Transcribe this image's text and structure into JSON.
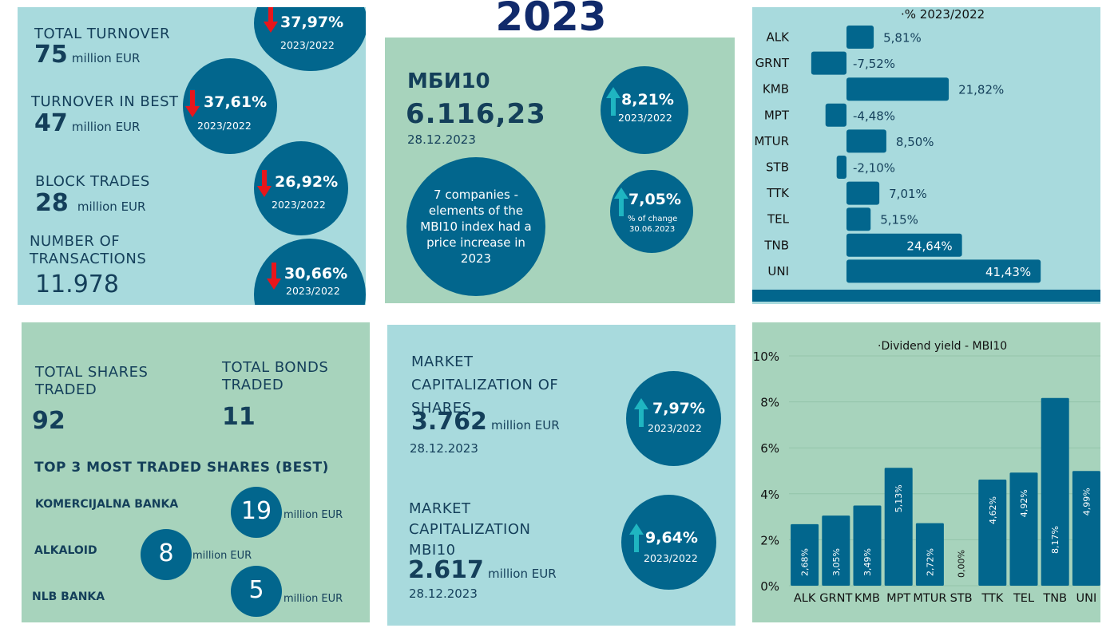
{
  "title": "2023",
  "colors": {
    "panel_blue": "#a8dadd",
    "panel_green": "#a7d3bc",
    "circle": "#02668d",
    "down_arrow": "#e8161b",
    "up_arrow": "#1fb5c1",
    "text": "#143f5a",
    "title": "#112a6b"
  },
  "turnover_panel": {
    "total_turnover": {
      "label": "TOTAL TURNOVER",
      "value": "75",
      "unit": "million EUR",
      "change": "37,97%",
      "period": "2023/2022",
      "direction": "down"
    },
    "turnover_best": {
      "label": "TURNOVER IN BEST",
      "value": "47",
      "unit": "million EUR",
      "change": "37,61%",
      "period": "2023/2022",
      "direction": "down"
    },
    "block_trades": {
      "label": "BLOCK TRADES",
      "value": "28",
      "unit": "million EUR",
      "change": "26,92%",
      "period": "2023/2022",
      "direction": "down"
    },
    "transactions": {
      "label_line1": "NUMBER OF",
      "label_line2": "TRANSACTIONS",
      "value": "11.978",
      "change": "30,66%",
      "period": "2023/2022",
      "direction": "down"
    }
  },
  "mbi_panel": {
    "name": "МБИ10",
    "value": "6.116,23",
    "date": "28.12.2023",
    "change": "8,21%",
    "period": "2023/2022",
    "note_lines": [
      "7 companies -",
      "elements of the",
      "MBI10 index had a",
      "price increase in",
      "2023"
    ],
    "half_change": "7,05%",
    "half_label": "% of change",
    "half_date": "30.06.2023"
  },
  "shares_panel": {
    "total_shares_label_1": "TOTAL SHARES",
    "total_shares_label_2": "TRADED",
    "total_shares_value": "92",
    "total_bonds_label_1": "TOTAL BONDS",
    "total_bonds_label_2": "TRADED",
    "total_bonds_value": "11",
    "top3_title": "TOP 3 MOST TRADED SHARES (BEST)",
    "top3": [
      {
        "name": "KOMERCIJALNA BANKA",
        "value": "19",
        "unit": "million EUR"
      },
      {
        "name": "ALKALOID",
        "value": "8",
        "unit": "million EUR"
      },
      {
        "name": "NLB BANKA",
        "value": "5",
        "unit": "million EUR"
      }
    ]
  },
  "cap_panel": {
    "shares": {
      "label_lines": [
        "MARKET",
        "CAPITALIZATION OF",
        "SHARES"
      ],
      "value": "3.762",
      "unit": "million EUR",
      "date": "28.12.2023",
      "change": "7,97%",
      "period": "2023/2022"
    },
    "mbi10": {
      "label_lines": [
        "MARKET",
        "CAPITALIZATION",
        "MBI10"
      ],
      "value": "2.617",
      "unit": "million EUR",
      "date": "28.12.2023",
      "change": "9,64%",
      "period": "2023/2022"
    }
  },
  "chart_data": [
    {
      "type": "bar",
      "orientation": "horizontal",
      "title": "% 2023/2022",
      "categories": [
        "ALK",
        "GRNT",
        "KMB",
        "MPT",
        "MTUR",
        "STB",
        "TTK",
        "TEL",
        "TNB",
        "UNI"
      ],
      "values": [
        5.81,
        -7.52,
        21.82,
        -4.48,
        8.5,
        -2.1,
        7.01,
        5.15,
        24.64,
        41.43
      ],
      "labels": [
        "5,81%",
        "-7,52%",
        "21,82%",
        "-4,48%",
        "8,50%",
        "-2,10%",
        "7,01%",
        "5,15%",
        "24,64%",
        "41,43%"
      ],
      "xlim": [
        -10,
        45
      ],
      "legend": "top-center"
    },
    {
      "type": "bar",
      "title": "Dividend yield - MBI10",
      "categories": [
        "ALK",
        "GRNT",
        "KMB",
        "MPT",
        "MTUR",
        "STB",
        "TTK",
        "TEL",
        "TNB",
        "UNI"
      ],
      "values": [
        2.68,
        3.05,
        3.49,
        5.13,
        2.72,
        0.0,
        4.62,
        4.92,
        8.17,
        4.99
      ],
      "labels": [
        "2,68%",
        "3,05%",
        "3,49%",
        "5,13%",
        "2,72%",
        "0,00%",
        "4,62%",
        "4,92%",
        "8,17%",
        "4,99%"
      ],
      "yticks": [
        "0%",
        "2%",
        "4%",
        "6%",
        "8%",
        "10%"
      ],
      "ylim": [
        0,
        10
      ],
      "grid": true,
      "legend": "top-center"
    }
  ]
}
